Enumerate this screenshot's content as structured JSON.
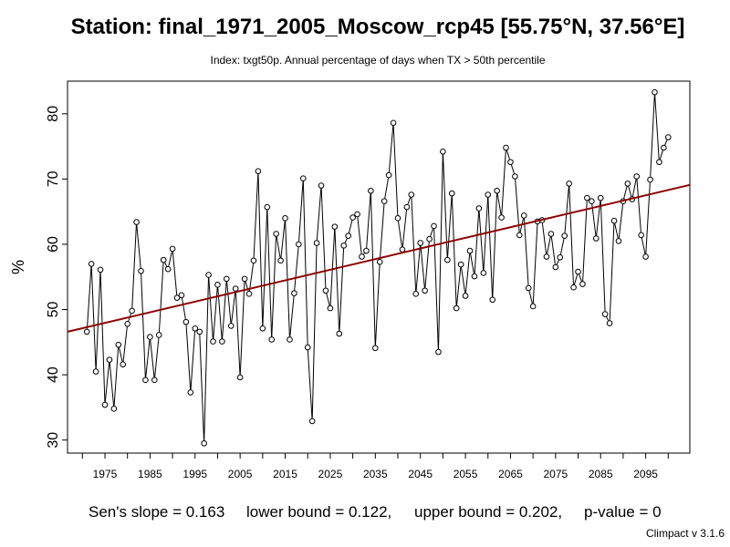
{
  "chart_data": {
    "type": "line",
    "title": "Station: final_1971_2005_Moscow_rcp45 [55.75°N, 37.56°E]",
    "subtitle": "Index: txgt50p. Annual percentage of days when TX > 50th percentile",
    "xlabel": "",
    "ylabel": "%",
    "xlim": [
      1966.7,
      2104.8
    ],
    "ylim": [
      28,
      85
    ],
    "x_ticks": [
      1975,
      1985,
      1995,
      2005,
      2015,
      2025,
      2035,
      2045,
      2055,
      2065,
      2075,
      2085,
      2095
    ],
    "x_minor_ticks": [
      1970,
      1980,
      1990,
      2000,
      2010,
      2020,
      2030,
      2040,
      2050,
      2060,
      2070,
      2080,
      2090,
      2100
    ],
    "y_ticks": [
      30,
      40,
      50,
      60,
      70,
      80
    ],
    "grid": false,
    "x": [
      1971,
      1972,
      1973,
      1974,
      1975,
      1976,
      1977,
      1978,
      1979,
      1980,
      1981,
      1982,
      1983,
      1984,
      1985,
      1986,
      1987,
      1988,
      1989,
      1990,
      1991,
      1992,
      1993,
      1994,
      1995,
      1996,
      1997,
      1998,
      1999,
      2000,
      2001,
      2002,
      2003,
      2004,
      2005,
      2006,
      2007,
      2008,
      2009,
      2010,
      2011,
      2012,
      2013,
      2014,
      2015,
      2016,
      2017,
      2018,
      2019,
      2020,
      2021,
      2022,
      2023,
      2024,
      2025,
      2026,
      2027,
      2028,
      2029,
      2030,
      2031,
      2032,
      2033,
      2034,
      2035,
      2036,
      2037,
      2038,
      2039,
      2040,
      2041,
      2042,
      2043,
      2044,
      2045,
      2046,
      2047,
      2048,
      2049,
      2050,
      2051,
      2052,
      2053,
      2054,
      2055,
      2056,
      2057,
      2058,
      2059,
      2060,
      2061,
      2062,
      2063,
      2064,
      2065,
      2066,
      2067,
      2068,
      2069,
      2070,
      2071,
      2072,
      2073,
      2074,
      2075,
      2076,
      2077,
      2078,
      2079,
      2080,
      2081,
      2082,
      2083,
      2084,
      2085,
      2086,
      2087,
      2088,
      2089,
      2090,
      2091,
      2092,
      2093,
      2094,
      2095,
      2096,
      2097,
      2098,
      2099,
      2100
    ],
    "series": [
      {
        "values": [
          46.6,
          57.0,
          40.5,
          56.1,
          35.4,
          42.3,
          34.8,
          44.6,
          41.6,
          47.8,
          49.8,
          63.4,
          55.9,
          39.2,
          45.8,
          39.2,
          46.1,
          57.6,
          56.2,
          59.3,
          51.8,
          52.2,
          48.1,
          37.3,
          47.1,
          46.6,
          29.5,
          55.3,
          45.1,
          53.8,
          45.1,
          54.7,
          47.5,
          53.2,
          39.6,
          54.7,
          52.4,
          57.5,
          71.2,
          47.1,
          65.7,
          45.4,
          61.6,
          57.5,
          64.0,
          45.4,
          52.5,
          60.0,
          70.1,
          44.2,
          32.9,
          60.2,
          69.0,
          52.9,
          50.2,
          62.7,
          46.3,
          59.8,
          61.3,
          64.1,
          64.6,
          58.1,
          59.0,
          68.2,
          44.1,
          57.3,
          66.6,
          70.6,
          78.6,
          64.0,
          59.2,
          65.7,
          67.6,
          52.4,
          60.2,
          52.9,
          60.8,
          62.8,
          43.5,
          74.2,
          57.6,
          67.8,
          50.2,
          56.9,
          52.1,
          59.0,
          55.1,
          65.5,
          55.6,
          67.6,
          51.5,
          68.2,
          64.1,
          74.8,
          72.6,
          70.4,
          61.4,
          64.4,
          53.3,
          50.5,
          63.5,
          63.7,
          58.1,
          61.6,
          56.5,
          58.0,
          61.3,
          69.3,
          53.4,
          55.8,
          53.9,
          67.1,
          66.6,
          60.9,
          67.1,
          49.3,
          47.9,
          63.6,
          60.5,
          66.6,
          69.3,
          66.9,
          70.4,
          61.4,
          58.1,
          69.9,
          83.3,
          72.6,
          74.8,
          76.4
        ]
      }
    ],
    "trend_line": {
      "start_x": 1966.7,
      "start_y": 46.6,
      "end_x": 2104.8,
      "end_y": 69.1,
      "color": "#8b0000"
    },
    "footer": {
      "slope_label": "Sen's slope = 0.163",
      "lower_label": "lower bound = 0.122,",
      "upper_label": "upper bound = 0.202,",
      "pvalue_label": "p-value = 0"
    },
    "credit": "Climpact v 3.1.6"
  }
}
